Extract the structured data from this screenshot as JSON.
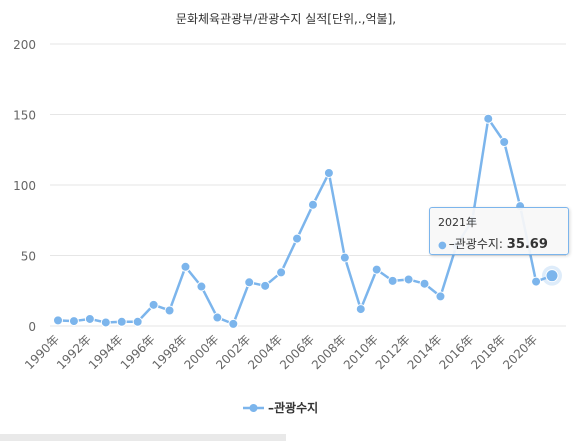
{
  "chart_data": {
    "type": "line",
    "title": "문화체육관광부/관광수지 실적[단위,.,억불],",
    "xlabel": "",
    "ylabel": "",
    "x": [
      "1990年",
      "1991年",
      "1992年",
      "1993年",
      "1994年",
      "1995年",
      "1996年",
      "1997年",
      "1998年",
      "1999年",
      "2000年",
      "2001年",
      "2002年",
      "2003年",
      "2004年",
      "2005年",
      "2006年",
      "2007年",
      "2008年",
      "2009年",
      "2010年",
      "2011年",
      "2012年",
      "2013年",
      "2014年",
      "2015年",
      "2016年",
      "2017年",
      "2018年",
      "2019年",
      "2020年",
      "2021年"
    ],
    "x_tick_labels": [
      "1990年",
      "1992年",
      "1994年",
      "1996年",
      "1998年",
      "2000年",
      "2002年",
      "2004年",
      "2006年",
      "2008年",
      "2010年",
      "2012年",
      "2014年",
      "2016年",
      "2018年",
      "2020年"
    ],
    "series": [
      {
        "name": "–관광수지",
        "color": "#7cb5ec",
        "values": [
          4,
          3.5,
          5,
          2.5,
          3,
          3,
          15,
          11,
          42,
          28,
          6,
          1.5,
          31,
          28.5,
          38,
          62,
          86,
          108.5,
          48.5,
          12,
          40,
          32,
          33,
          30,
          21,
          57,
          75,
          147,
          130.5,
          85,
          31.5,
          35.69
        ]
      }
    ],
    "ylim": [
      0,
      200
    ],
    "y_ticks": [
      0,
      50,
      100,
      150,
      200
    ],
    "grid": true,
    "legend": "bottom-center"
  },
  "tooltip": {
    "category": "2021年",
    "series_name": "–관광수지",
    "separator": ":",
    "value": "35.69"
  }
}
